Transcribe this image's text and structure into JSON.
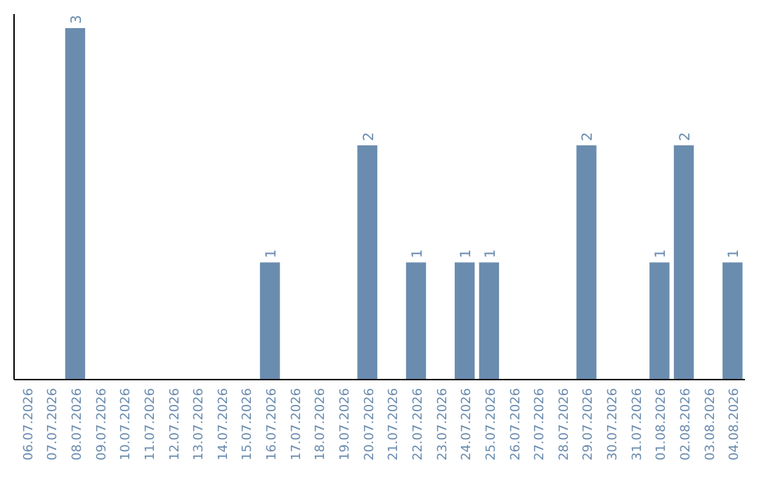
{
  "chart_data": {
    "type": "bar",
    "categories": [
      "06.07.2026",
      "07.07.2026",
      "08.07.2026",
      "09.07.2026",
      "10.07.2026",
      "11.07.2026",
      "12.07.2026",
      "13.07.2026",
      "14.07.2026",
      "15.07.2026",
      "16.07.2026",
      "17.07.2026",
      "18.07.2026",
      "19.07.2026",
      "20.07.2026",
      "21.07.2026",
      "22.07.2026",
      "23.07.2026",
      "24.07.2026",
      "25.07.2026",
      "26.07.2026",
      "27.07.2026",
      "28.07.2026",
      "29.07.2026",
      "30.07.2026",
      "31.07.2026",
      "01.08.2026",
      "02.08.2026",
      "03.08.2026",
      "04.08.2026"
    ],
    "values": [
      0,
      0,
      3,
      0,
      0,
      0,
      0,
      0,
      0,
      0,
      1,
      0,
      0,
      0,
      2,
      0,
      1,
      0,
      1,
      1,
      0,
      0,
      0,
      2,
      0,
      0,
      1,
      2,
      0,
      1
    ],
    "value_labels": [
      null,
      null,
      "3",
      null,
      null,
      null,
      null,
      null,
      null,
      null,
      "1",
      null,
      null,
      null,
      "2",
      null,
      "1",
      null,
      "1",
      "1",
      null,
      null,
      null,
      "2",
      null,
      null,
      "1",
      "2",
      null,
      "1"
    ],
    "color": "#6a8caf",
    "ylim": [
      0,
      3
    ],
    "tick_labels": "x"
  }
}
